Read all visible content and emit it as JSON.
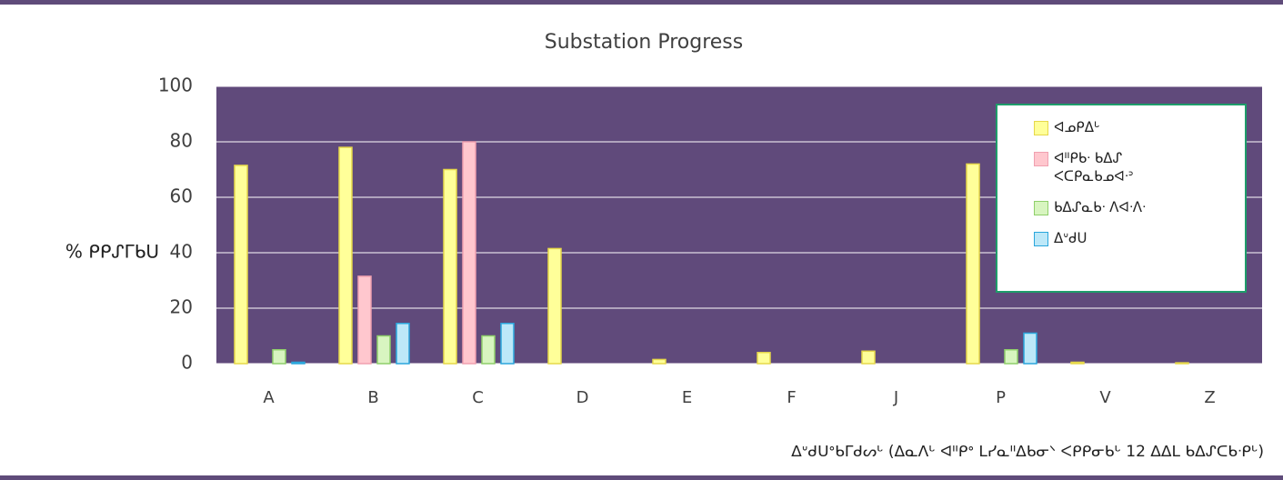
{
  "chart_data": {
    "type": "bar",
    "title": "Substation Progress",
    "y_label": "% ᑭᑭᔑᒥᑲᑌ",
    "x_label": "ᐃᐡᑯᑌᐤᑲᒥᑯᔕᒡ (ᐃᓇᐱᒡ ᐊᐦᑭᐤ ᒪᓯᓇᐦᐃᑲᓂᐠ ᐸᑭᑭᓂᑲᒡ 12 ᐃᐃᒪ ᑲᐃᔑᑕᑲᐧᑭᒡ)",
    "categories": [
      "A",
      "B",
      "C",
      "D",
      "E",
      "F",
      "J",
      "P",
      "V",
      "Z"
    ],
    "series": [
      {
        "name": "ᐊᓄᑭᐃᒡ",
        "color": "#ffff99",
        "border": "#e6d84a",
        "values": [
          71.5,
          78,
          70,
          41.5,
          1.5,
          4,
          4.5,
          72,
          0.5,
          0.3
        ]
      },
      {
        "name": "ᐊᐦᑭᑲᐧ ᑲᐃᔑ ᐸᑕᑭᓇᑲᓄᐊᐧᐣ",
        "color": "#ffc7ce",
        "border": "#f0a0b0",
        "values": [
          0,
          31.5,
          80,
          0,
          0,
          0,
          0,
          0,
          0,
          0
        ]
      },
      {
        "name": "ᑲᐃᔑᓇᑲᐧ ᐱᐊᐧᐱᐧ",
        "color": "#d8f5c0",
        "border": "#8fcf6a",
        "values": [
          5,
          10,
          10,
          0,
          0,
          0,
          0,
          5,
          0,
          0
        ]
      },
      {
        "name": "ᐃᐡᑯᑌ",
        "color": "#bde8f8",
        "border": "#2aa6dc",
        "values": [
          0.5,
          14.5,
          14.5,
          0,
          0,
          0,
          0,
          11,
          0,
          0
        ]
      }
    ],
    "ylim": [
      0,
      100
    ],
    "yticks": [
      0,
      20,
      40,
      60,
      80,
      100
    ],
    "grid": true,
    "legend": "upper right"
  }
}
